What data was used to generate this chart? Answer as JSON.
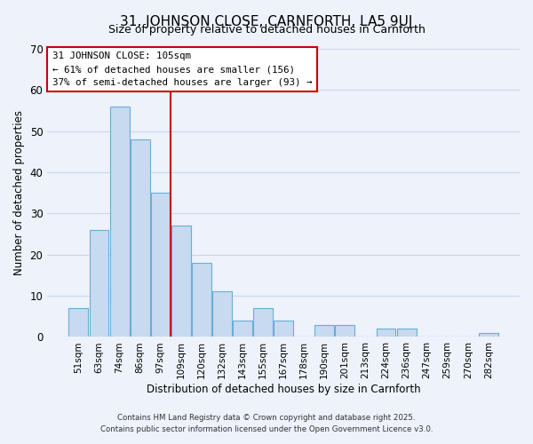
{
  "title": "31, JOHNSON CLOSE, CARNFORTH, LA5 9UJ",
  "subtitle": "Size of property relative to detached houses in Carnforth",
  "xlabel": "Distribution of detached houses by size in Carnforth",
  "ylabel": "Number of detached properties",
  "categories": [
    "51sqm",
    "63sqm",
    "74sqm",
    "86sqm",
    "97sqm",
    "109sqm",
    "120sqm",
    "132sqm",
    "143sqm",
    "155sqm",
    "167sqm",
    "178sqm",
    "190sqm",
    "201sqm",
    "213sqm",
    "224sqm",
    "236sqm",
    "247sqm",
    "259sqm",
    "270sqm",
    "282sqm"
  ],
  "values": [
    7,
    26,
    56,
    48,
    35,
    27,
    18,
    11,
    4,
    7,
    4,
    0,
    3,
    3,
    0,
    2,
    2,
    0,
    0,
    0,
    1
  ],
  "bar_color": "#c8daf0",
  "bar_edge_color": "#6aaed6",
  "vline_x_index": 5,
  "vline_color": "#cc0000",
  "annotation_title": "31 JOHNSON CLOSE: 105sqm",
  "annotation_line1": "← 61% of detached houses are smaller (156)",
  "annotation_line2": "37% of semi-detached houses are larger (93) →",
  "annotation_box_edgecolor": "#cc0000",
  "ylim": [
    0,
    70
  ],
  "yticks": [
    0,
    10,
    20,
    30,
    40,
    50,
    60,
    70
  ],
  "footer1": "Contains HM Land Registry data © Crown copyright and database right 2025.",
  "footer2": "Contains public sector information licensed under the Open Government Licence v3.0.",
  "bg_color": "#edf2fb",
  "plot_bg_color": "#edf2fb",
  "grid_color": "#c8d8ee"
}
